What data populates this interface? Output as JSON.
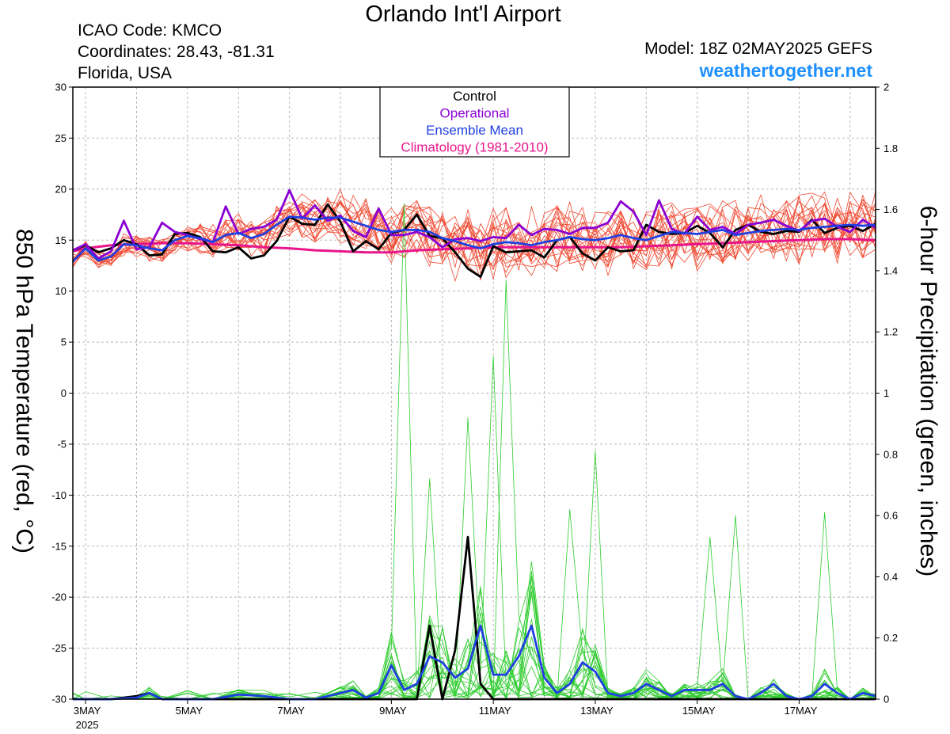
{
  "header": {
    "title": "Orlando Int'l Airport",
    "icao": "ICAO Code: KMCO",
    "coordinates": "Coordinates: 28.43, -81.31",
    "location": "Florida, USA",
    "model": "Model: 18Z 02MAY2025 GEFS",
    "site": "weathertogether.net"
  },
  "chart_data": {
    "type": "line",
    "title": "Orlando Int'l Airport",
    "ylabel_left": "850 hPa Temperature (red, °C)",
    "ylabel_right": "6-hour Precipitation (green, inches)",
    "x_unit": "days since 3MAY 2025 00Z",
    "x_range": [
      0,
      15.5
    ],
    "x_ticks": [
      {
        "label": "3MAY",
        "x": 0
      },
      {
        "label": "5MAY",
        "x": 2
      },
      {
        "label": "7MAY",
        "x": 4
      },
      {
        "label": "9MAY",
        "x": 6
      },
      {
        "label": "11MAY",
        "x": 8
      },
      {
        "label": "13MAY",
        "x": 10
      },
      {
        "label": "15MAY",
        "x": 12
      },
      {
        "label": "17MAY",
        "x": 14
      }
    ],
    "x_year_label": "2025",
    "y_left": {
      "min": -30,
      "max": 30,
      "ticks": [
        -30,
        -25,
        -20,
        -15,
        -10,
        -5,
        0,
        5,
        10,
        15,
        20,
        25,
        30
      ]
    },
    "y_right": {
      "min": 0,
      "max": 2,
      "ticks": [
        "0",
        "0.2",
        "0.4",
        "0.6",
        "0.8",
        "1",
        "1.2",
        "1.4",
        "1.6",
        "1.8",
        "2"
      ]
    },
    "grid": true,
    "legend": {
      "placement": "top-center",
      "entries": [
        {
          "label": "Control",
          "color": "#000000"
        },
        {
          "label": "Operational",
          "color": "#8a00d4"
        },
        {
          "label": "Ensemble Mean",
          "color": "#1f3fe0"
        },
        {
          "label": "Climatology (1981-2010)",
          "color": "#e8168c"
        }
      ]
    },
    "colors": {
      "members_temp": "#f04a32",
      "members_precip": "#2ecc2e",
      "control": "#000000",
      "operational": "#8a00d4",
      "mean": "#1f3fe0",
      "climatology": "#e8168c"
    },
    "series": [
      {
        "name": "Control",
        "axis": "left",
        "x": [
          -0.25,
          0,
          0.25,
          0.5,
          0.75,
          1,
          1.25,
          1.5,
          1.75,
          2,
          2.25,
          2.5,
          2.75,
          3,
          3.25,
          3.5,
          3.75,
          4,
          4.25,
          4.5,
          4.75,
          5,
          5.25,
          5.5,
          5.75,
          6,
          6.25,
          6.5,
          6.75,
          7,
          7.25,
          7.5,
          7.75,
          8,
          8.25,
          8.5,
          8.75,
          9,
          9.25,
          9.5,
          9.75,
          10,
          10.25,
          10.5,
          10.75,
          11,
          11.25,
          11.5,
          11.75,
          12,
          12.25,
          12.5,
          12.75,
          13,
          13.25,
          13.5,
          13.75,
          14,
          14.25,
          14.5,
          14.75,
          15,
          15.25,
          15.5
        ],
        "values": [
          14.0,
          14.5,
          13.8,
          14.2,
          15.0,
          14.6,
          13.5,
          13.6,
          15.6,
          15.7,
          15.3,
          13.9,
          13.8,
          14.3,
          13.2,
          13.5,
          14.9,
          17.3,
          16.6,
          16.5,
          18.5,
          16.8,
          13.9,
          14.9,
          14.1,
          15.7,
          16.0,
          17.5,
          15.4,
          15.2,
          13.8,
          12.2,
          11.4,
          14.4,
          13.8,
          13.9,
          14.0,
          13.3,
          15.0,
          15.3,
          13.7,
          13.0,
          14.3,
          13.9,
          14.0,
          16.5,
          15.8,
          15.6,
          15.7,
          16.4,
          15.7,
          14.3,
          16.0,
          16.5,
          15.8,
          15.6,
          15.9,
          15.8,
          17.0,
          15.7,
          16.2,
          16.4,
          15.9,
          16.6
        ]
      },
      {
        "name": "Operational",
        "axis": "left",
        "x": [
          -0.25,
          0,
          0.25,
          0.5,
          0.75,
          1,
          1.25,
          1.5,
          1.75,
          2,
          2.25,
          2.5,
          2.75,
          3,
          3.25,
          3.5,
          3.75,
          4,
          4.25,
          4.5,
          4.75,
          5,
          5.25,
          5.5,
          5.75,
          6,
          6.25,
          6.5,
          6.75,
          7,
          7.25,
          7.5,
          7.75,
          8,
          8.25,
          8.5,
          8.75,
          9,
          9.25,
          9.5,
          9.75,
          10,
          10.25,
          10.5,
          10.75,
          11,
          11.25,
          11.5,
          11.75,
          12,
          12.25,
          12.5,
          12.75,
          13,
          13.25,
          13.5,
          13.75,
          14,
          14.25,
          14.5,
          14.75,
          15,
          15.25,
          15.5
        ],
        "values": [
          14.0,
          14.6,
          13.2,
          13.9,
          16.9,
          14.1,
          14.3,
          16.7,
          15.8,
          15.5,
          15.1,
          14.8,
          18.3,
          15.6,
          16.1,
          16.3,
          17.0,
          19.9,
          17.1,
          18.4,
          16.9,
          17.4,
          15.9,
          15.3,
          18.1,
          15.5,
          15.5,
          15.8,
          15.3,
          14.3,
          15.1,
          15.2,
          14.9,
          15.3,
          15.2,
          16.5,
          15.5,
          16.1,
          16.0,
          15.6,
          16.2,
          16.2,
          16.7,
          18.8,
          17.8,
          15.5,
          18.9,
          16.1,
          15.6,
          17.3,
          16.0,
          16.3,
          15.6,
          16.5,
          16.7,
          17.0,
          16.4,
          15.9,
          16.9,
          17.1,
          16.3,
          15.8,
          17.0,
          16.2
        ]
      },
      {
        "name": "Ensemble Mean",
        "axis": "left",
        "x": [
          -0.25,
          0,
          0.25,
          0.5,
          0.75,
          1,
          1.25,
          1.5,
          1.75,
          2,
          2.25,
          2.5,
          2.75,
          3,
          3.25,
          3.5,
          3.75,
          4,
          4.25,
          4.5,
          4.75,
          5,
          5.25,
          5.5,
          5.75,
          6,
          6.25,
          6.5,
          6.75,
          7,
          7.25,
          7.5,
          7.75,
          8,
          8.25,
          8.5,
          8.75,
          9,
          9.25,
          9.5,
          9.75,
          10,
          10.25,
          10.5,
          10.75,
          11,
          11.25,
          11.5,
          11.75,
          12,
          12.25,
          12.5,
          12.75,
          13,
          13.25,
          13.5,
          13.75,
          14,
          14.25,
          14.5,
          14.75,
          15,
          15.25,
          15.5
        ],
        "values": [
          12.9,
          14.2,
          13.0,
          13.4,
          14.6,
          14.5,
          14.2,
          14.0,
          15.0,
          15.4,
          15.2,
          14.8,
          15.5,
          15.7,
          15.2,
          15.6,
          16.5,
          17.3,
          17.2,
          17.0,
          17.2,
          17.2,
          16.8,
          16.4,
          16.0,
          15.8,
          16.0,
          16.0,
          15.8,
          15.2,
          14.9,
          14.5,
          14.2,
          14.6,
          14.8,
          14.7,
          14.5,
          14.8,
          15.0,
          15.3,
          15.1,
          15.0,
          15.2,
          15.5,
          15.2,
          15.0,
          15.4,
          15.8,
          15.7,
          15.6,
          15.8,
          16.0,
          15.5,
          15.7,
          15.9,
          16.0,
          16.1,
          16.0,
          16.2,
          16.3,
          16.4,
          16.5,
          16.4,
          16.5
        ]
      },
      {
        "name": "Climatology (1981-2010)",
        "axis": "left",
        "x": [
          -0.25,
          0,
          0.5,
          1,
          1.5,
          2,
          2.5,
          3,
          3.5,
          4,
          4.5,
          5,
          5.5,
          6,
          6.5,
          7,
          7.5,
          8,
          8.5,
          9,
          9.5,
          10,
          10.5,
          11,
          11.5,
          12,
          12.5,
          13,
          13.5,
          14,
          14.5,
          15,
          15.5
        ],
        "values": [
          13.9,
          14.2,
          14.5,
          14.6,
          14.7,
          14.7,
          14.6,
          14.5,
          14.3,
          14.2,
          14.0,
          13.9,
          13.8,
          13.8,
          14.0,
          14.1,
          14.2,
          14.3,
          14.3,
          14.3,
          14.3,
          14.3,
          14.3,
          14.4,
          14.5,
          14.6,
          14.7,
          14.8,
          14.9,
          15.0,
          15.1,
          15.1,
          15.0
        ]
      },
      {
        "name": "Control precipitation",
        "axis": "right",
        "x": [
          -0.25,
          0,
          0.5,
          1,
          1.25,
          1.5,
          2,
          3,
          4,
          5,
          6,
          6.5,
          6.75,
          7,
          7.25,
          7.5,
          7.75,
          8,
          8.5,
          9,
          10,
          11,
          12,
          13,
          14,
          15,
          15.5
        ],
        "values": [
          0,
          0,
          0,
          0.01,
          0.02,
          0,
          0,
          0,
          0,
          0,
          0,
          0,
          0.24,
          0,
          0.16,
          0.53,
          0.05,
          0,
          0,
          0,
          0,
          0,
          0,
          0,
          0,
          0,
          0
        ]
      },
      {
        "name": "Mean precipitation",
        "axis": "right",
        "x": [
          -0.25,
          0,
          0.5,
          1,
          1.25,
          1.5,
          2,
          2.5,
          3,
          3.5,
          4,
          4.5,
          5,
          5.25,
          5.5,
          5.75,
          6,
          6.25,
          6.5,
          6.75,
          7,
          7.25,
          7.5,
          7.75,
          8,
          8.25,
          8.5,
          8.75,
          9,
          9.25,
          9.5,
          9.75,
          10,
          10.25,
          10.5,
          10.75,
          11,
          11.25,
          11.5,
          11.75,
          12,
          12.25,
          12.5,
          12.75,
          13,
          13.25,
          13.5,
          13.75,
          14,
          14.25,
          14.5,
          14.75,
          15,
          15.25,
          15.5
        ],
        "values": [
          0,
          0,
          0,
          0.005,
          0.02,
          0,
          0,
          0,
          0.015,
          0.01,
          0,
          0,
          0.02,
          0.03,
          0.005,
          0.02,
          0.11,
          0.03,
          0.05,
          0.14,
          0.12,
          0.07,
          0.1,
          0.24,
          0.08,
          0.08,
          0.14,
          0.24,
          0.07,
          0.02,
          0.05,
          0.12,
          0.09,
          0.02,
          0.01,
          0.02,
          0.05,
          0.03,
          0.01,
          0.03,
          0.03,
          0.03,
          0.05,
          0.01,
          0.0,
          0.02,
          0.05,
          0.01,
          0.0,
          0.01,
          0.05,
          0.02,
          0.0,
          0.02,
          0.01
        ]
      }
    ],
    "ensemble_members": {
      "count": 20,
      "temperature_center": "Ensemble Mean",
      "temperature_spread_c": [
        0.8,
        4.0
      ],
      "precip_peaks": [
        {
          "x": 6.25,
          "value": 1.62
        },
        {
          "x": 7.5,
          "value": 0.92
        },
        {
          "x": 8.25,
          "value": 1.37
        },
        {
          "x": 8.0,
          "value": 1.12
        },
        {
          "x": 10.0,
          "value": 0.81
        },
        {
          "x": 6.75,
          "value": 0.72
        },
        {
          "x": 12.25,
          "value": 0.53
        },
        {
          "x": 14.5,
          "value": 0.61
        },
        {
          "x": 12.75,
          "value": 0.6
        },
        {
          "x": 9.5,
          "value": 0.62
        }
      ]
    }
  }
}
